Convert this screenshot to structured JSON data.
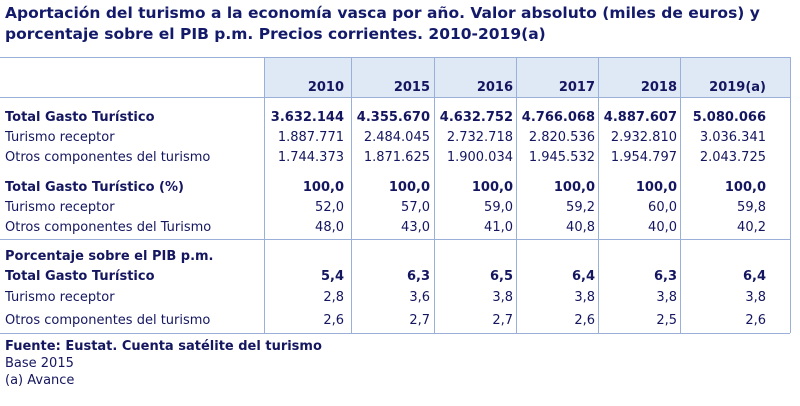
{
  "title": "Aportación del turismo a la economía vasca por año. Valor absoluto (miles de euros) y porcentaje sobre el PIB p.m. Precios corrientes. 2010-2019(a)",
  "columns": [
    "2010",
    "2015",
    "2016",
    "2017",
    "2018",
    "2019(a)"
  ],
  "sections": [
    {
      "rows": [
        {
          "label": "Total Gasto Turístico",
          "bold": true,
          "values": [
            "3.632.144",
            "4.355.670",
            "4.632.752",
            "4.766.068",
            "4.887.607",
            "5.080.066"
          ]
        },
        {
          "label": "Turismo receptor",
          "bold": false,
          "values": [
            "1.887.771",
            "2.484.045",
            "2.732.718",
            "2.820.536",
            "2.932.810",
            "3.036.341"
          ]
        },
        {
          "label": "Otros componentes del turismo",
          "bold": false,
          "values": [
            "1.744.373",
            "1.871.625",
            "1.900.034",
            "1.945.532",
            "1.954.797",
            "2.043.725"
          ]
        }
      ]
    },
    {
      "rows": [
        {
          "label": "Total Gasto Turístico (%)",
          "bold": true,
          "values": [
            "100,0",
            "100,0",
            "100,0",
            "100,0",
            "100,0",
            "100,0"
          ]
        },
        {
          "label": "Turismo receptor",
          "bold": false,
          "values": [
            "52,0",
            "57,0",
            "59,0",
            "59,2",
            "60,0",
            "59,8"
          ]
        },
        {
          "label": "Otros componentes del Turismo",
          "bold": false,
          "values": [
            "48,0",
            "43,0",
            "41,0",
            "40,8",
            "40,0",
            "40,2"
          ]
        }
      ]
    },
    {
      "heading": "Porcentaje sobre el PIB p.m.",
      "rows": [
        {
          "label": "Total Gasto Turístico",
          "bold": true,
          "values": [
            "5,4",
            "6,3",
            "6,5",
            "6,4",
            "6,3",
            "6,4"
          ]
        },
        {
          "label": "Turismo receptor",
          "bold": false,
          "values": [
            "2,8",
            "3,6",
            "3,8",
            "3,8",
            "3,8",
            "3,8"
          ]
        },
        {
          "label": "Otros componentes del turismo",
          "bold": false,
          "values": [
            "2,6",
            "2,7",
            "2,7",
            "2,6",
            "2,5",
            "2,6"
          ]
        }
      ]
    }
  ],
  "footer": {
    "source": "Fuente: Eustat. Cuenta satélite del turismo",
    "base": "Base 2015",
    "note": "(a) Avance"
  }
}
